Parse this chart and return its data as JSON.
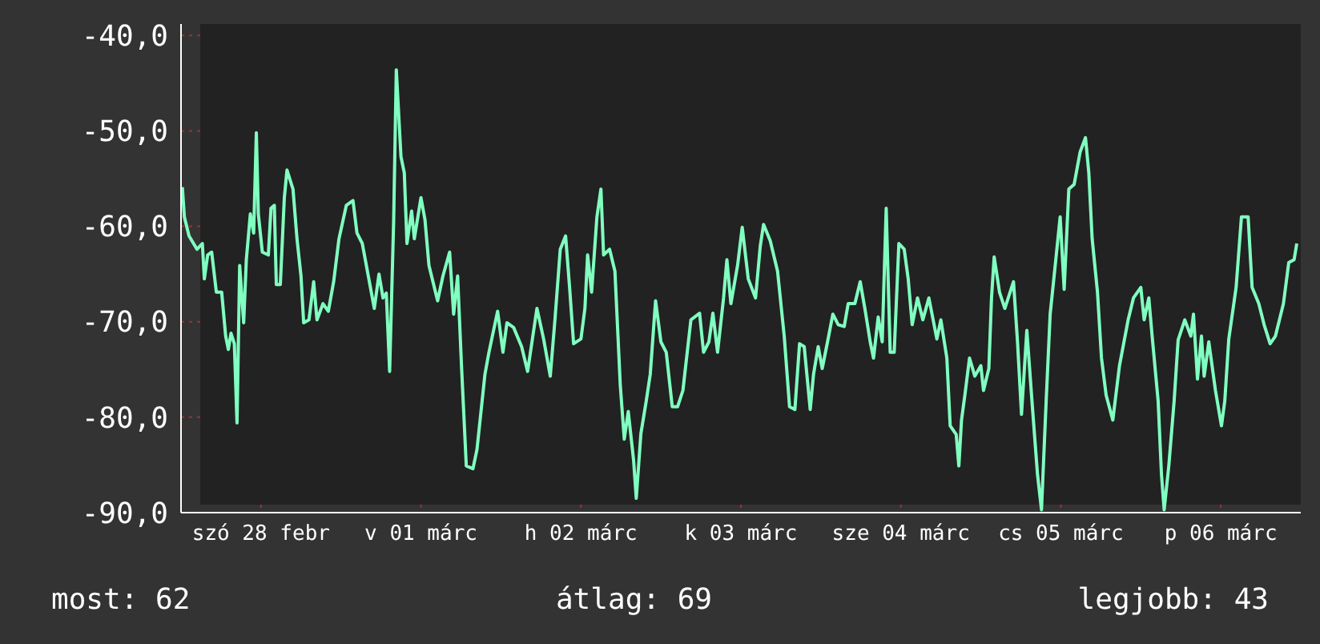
{
  "chart_data": {
    "type": "line",
    "x": [
      "--02-27T12:12",
      "--02-27T12:30",
      "--02-27T13:12",
      "--02-27T14:24",
      "--02-27T15:12",
      "--02-27T15:30",
      "--02-27T16:00",
      "--02-27T16:36",
      "--02-27T17:18",
      "--02-27T18:06",
      "--02-27T18:42",
      "--02-27T19:06",
      "--02-27T19:30",
      "--02-27T20:00",
      "--02-27T20:24",
      "--02-27T20:48",
      "--02-27T21:24",
      "--02-27T21:48",
      "--02-27T22:24",
      "--02-27T22:54",
      "--02-27T23:18",
      "--02-27T23:36",
      "--02-28T00:12",
      "--02-28T01:06",
      "--02-28T01:30",
      "--02-28T02:00",
      "--02-28T02:18",
      "--02-28T02:54",
      "--02-28T03:30",
      "--02-28T03:54",
      "--02-28T04:48",
      "--02-28T05:24",
      "--02-28T06:00",
      "--02-28T06:24",
      "--02-28T07:12",
      "--02-28T07:54",
      "--02-28T08:24",
      "--02-28T09:18",
      "--02-28T10:06",
      "--02-28T10:54",
      "--02-28T11:42",
      "--02-28T12:48",
      "--02-28T13:48",
      "--02-28T14:24",
      "--02-28T15:12",
      "--02-28T16:06",
      "--02-28T17:00",
      "--02-28T17:42",
      "--02-28T18:18",
      "--02-28T18:48",
      "--02-28T19:18",
      "--02-28T19:54",
      "--02-28T20:18",
      "--02-28T21:00",
      "--02-28T21:30",
      "--02-28T21:54",
      "--02-28T22:36",
      "--02-28T23:00",
      "--03-01T00:00",
      "--03-01T00:36",
      "--03-01T01:12",
      "--03-01T02:30",
      "--03-01T03:18",
      "--03-01T04:18",
      "--03-01T04:54",
      "--03-01T05:30",
      "--03-01T06:06",
      "--03-01T06:48",
      "--03-01T07:48",
      "--03-01T08:24",
      "--03-01T09:36",
      "--03-01T10:12",
      "--03-01T11:30",
      "--03-01T12:18",
      "--03-01T12:54",
      "--03-01T13:54",
      "--03-01T15:06",
      "--03-01T16:00",
      "--03-01T17:24",
      "--03-01T18:24",
      "--03-01T19:24",
      "--03-01T20:06",
      "--03-01T20:54",
      "--03-01T21:42",
      "--03-01T22:18",
      "--03-01T22:54",
      "--03-02T00:00",
      "--03-02T00:36",
      "--03-02T01:00",
      "--03-02T01:36",
      "--03-02T02:24",
      "--03-02T03:00",
      "--03-02T03:24",
      "--03-02T04:18",
      "--03-02T05:06",
      "--03-02T05:54",
      "--03-02T06:30",
      "--03-02T07:06",
      "--03-02T07:54",
      "--03-02T08:18",
      "--03-02T09:00",
      "--03-02T09:48",
      "--03-02T10:24",
      "--03-02T11:12",
      "--03-02T12:00",
      "--03-02T12:48",
      "--03-02T13:42",
      "--03-02T14:30",
      "--03-02T15:18",
      "--03-02T16:30",
      "--03-02T17:48",
      "--03-02T18:24",
      "--03-02T19:12",
      "--03-02T19:48",
      "--03-02T20:30",
      "--03-02T21:24",
      "--03-02T21:54",
      "--03-02T22:30",
      "--03-02T23:30",
      "--03-03T00:12",
      "--03-03T01:06",
      "--03-03T02:12",
      "--03-03T02:54",
      "--03-03T03:24",
      "--03-03T04:24",
      "--03-03T05:30",
      "--03-03T06:30",
      "--03-03T07:18",
      "--03-03T08:06",
      "--03-03T08:48",
      "--03-03T09:30",
      "--03-03T10:24",
      "--03-03T10:54",
      "--03-03T11:36",
      "--03-03T12:12",
      "--03-03T13:00",
      "--03-03T13:48",
      "--03-03T14:36",
      "--03-03T15:30",
      "--03-03T16:06",
      "--03-03T17:06",
      "--03-03T17:54",
      "--03-03T18:36",
      "--03-03T19:24",
      "--03-03T19:54",
      "--03-03T20:36",
      "--03-03T21:12",
      "--03-03T21:48",
      "--03-03T22:24",
      "--03-03T23:00",
      "--03-03T23:42",
      "--03-04T00:30",
      "--03-04T01:06",
      "--03-04T01:42",
      "--03-04T02:30",
      "--03-04T03:18",
      "--03-04T04:12",
      "--03-04T05:24",
      "--03-04T06:00",
      "--03-04T06:54",
      "--03-04T07:24",
      "--03-04T08:18",
      "--03-04T08:42",
      "--03-04T09:06",
      "--03-04T09:36",
      "--03-04T10:18",
      "--03-04T11:06",
      "--03-04T12:00",
      "--03-04T12:24",
      "--03-04T13:12",
      "--03-04T13:36",
      "--03-04T14:00",
      "--03-04T14:48",
      "--03-04T15:36",
      "--03-04T16:54",
      "--03-04T17:30",
      "--03-04T18:06",
      "--03-04T18:54",
      "--03-04T19:42",
      "--03-04T20:30",
      "--03-04T21:06",
      "--03-04T21:48",
      "--03-04T22:24",
      "--03-04T23:12",
      "--03-04T23:54",
      "--03-05T00:30",
      "--03-05T01:12",
      "--03-05T02:00",
      "--03-05T02:54",
      "--03-05T03:42",
      "--03-05T04:12",
      "--03-05T04:42",
      "--03-05T05:30",
      "--03-05T06:06",
      "--03-05T06:48",
      "--03-05T07:48",
      "--03-05T08:48",
      "--03-05T10:06",
      "--03-05T10:54",
      "--03-05T12:00",
      "--03-05T12:30",
      "--03-05T13:12",
      "--03-05T13:42",
      "--03-05T14:36",
      "--03-05T15:06",
      "--03-05T15:30",
      "--03-05T16:12",
      "--03-05T17:00",
      "--03-05T17:36",
      "--03-05T18:36",
      "--03-05T19:30",
      "--03-05T19:54",
      "--03-05T20:30",
      "--03-05T21:06",
      "--03-05T21:30",
      "--03-05T22:12",
      "--03-05T23:12",
      "--03-06T00:06",
      "--03-06T00:36",
      "--03-06T01:12",
      "--03-06T02:18",
      "--03-06T03:06",
      "--03-06T04:06",
      "--03-06T04:42",
      "--03-06T05:42",
      "--03-06T06:30",
      "--03-06T07:24",
      "--03-06T08:12",
      "--03-06T09:24",
      "--03-06T10:12",
      "--03-06T11:00",
      "--03-06T11:24"
    ],
    "series": [
      {
        "color": "#80ffc0",
        "values": [
          -55.9,
          -59.0,
          -61.0,
          -62.4,
          -61.8,
          -65.5,
          -63.0,
          -62.7,
          -66.9,
          -66.9,
          -71.5,
          -72.9,
          -71.2,
          -72.3,
          -80.6,
          -64.1,
          -70.1,
          -63.5,
          -58.7,
          -60.7,
          -50.2,
          -58.7,
          -62.7,
          -63.0,
          -58.1,
          -57.8,
          -66.1,
          -66.1,
          -57.0,
          -54.1,
          -56.1,
          -61.3,
          -65.2,
          -70.1,
          -69.8,
          -65.8,
          -69.8,
          -68.1,
          -68.9,
          -65.8,
          -61.3,
          -57.8,
          -57.3,
          -60.7,
          -61.8,
          -65.2,
          -68.6,
          -65.0,
          -67.5,
          -67.0,
          -75.2,
          -59.5,
          -43.6,
          -52.7,
          -54.4,
          -61.8,
          -58.4,
          -61.3,
          -57.0,
          -59.3,
          -64.1,
          -67.8,
          -65.2,
          -62.7,
          -69.2,
          -65.2,
          -74.9,
          -85.1,
          -85.4,
          -83.4,
          -75.5,
          -73.2,
          -68.9,
          -73.2,
          -70.1,
          -70.6,
          -72.6,
          -75.2,
          -68.6,
          -71.8,
          -75.7,
          -69.8,
          -62.4,
          -61.0,
          -66.4,
          -72.3,
          -71.8,
          -68.6,
          -63.0,
          -66.9,
          -59.0,
          -56.1,
          -63.0,
          -62.4,
          -64.7,
          -76.6,
          -82.3,
          -79.4,
          -84.5,
          -88.5,
          -81.7,
          -78.3,
          -75.5,
          -67.8,
          -72.1,
          -73.2,
          -78.9,
          -78.9,
          -77.2,
          -69.8,
          -69.1,
          -73.2,
          -72.1,
          -69.1,
          -73.2,
          -67.5,
          -63.5,
          -68.1,
          -64.1,
          -60.1,
          -65.5,
          -67.5,
          -62.1,
          -59.8,
          -61.5,
          -64.7,
          -71.5,
          -78.9,
          -79.2,
          -72.3,
          -72.6,
          -79.2,
          -75.5,
          -72.6,
          -74.9,
          -72.1,
          -69.2,
          -70.3,
          -70.5,
          -68.1,
          -68.1,
          -65.8,
          -68.6,
          -72.1,
          -73.8,
          -69.5,
          -72.1,
          -58.1,
          -73.2,
          -73.2,
          -61.8,
          -62.4,
          -65.5,
          -70.3,
          -67.5,
          -69.8,
          -67.5,
          -71.8,
          -69.8,
          -73.8,
          -80.9,
          -81.8,
          -85.1,
          -80.3,
          -77.7,
          -73.8,
          -75.7,
          -74.6,
          -77.2,
          -74.9,
          -67.5,
          -63.2,
          -66.9,
          -68.6,
          -65.8,
          -72.1,
          -79.7,
          -70.9,
          -78.6,
          -86.0,
          -89.7,
          -78.3,
          -69.2,
          -63.8,
          -59.0,
          -66.6,
          -56.1,
          -55.6,
          -52.2,
          -50.7,
          -54.4,
          -61.3,
          -66.9,
          -73.8,
          -77.7,
          -80.3,
          -74.6,
          -69.8,
          -67.5,
          -66.4,
          -69.8,
          -67.5,
          -71.5,
          -78.3,
          -86.0,
          -89.7,
          -85.1,
          -78.3,
          -71.9,
          -69.8,
          -71.5,
          -69.2,
          -76.0,
          -71.5,
          -75.7,
          -72.1,
          -77.2,
          -80.9,
          -78.3,
          -71.8,
          -66.4,
          -59.0,
          -59.0,
          -66.4,
          -68.1,
          -70.3,
          -72.3,
          -71.5,
          -68.1,
          -63.8,
          -63.5,
          -61.8
        ]
      }
    ],
    "xlim": [
      "--02-27T12:00",
      "--03-06T12:00"
    ],
    "xticks": [
      {
        "value": "--02-28",
        "label": "szó 28 febr"
      },
      {
        "value": "--03-01",
        "label": "v 01 márc"
      },
      {
        "value": "--03-02",
        "label": "h 02 márc"
      },
      {
        "value": "--03-03",
        "label": "k 03 márc"
      },
      {
        "value": "--03-04",
        "label": "sze 04 márc"
      },
      {
        "value": "--03-05",
        "label": "cs 05 márc"
      },
      {
        "value": "--03-06",
        "label": "p 06 márc"
      }
    ],
    "ylim": [
      -90,
      -38.8
    ],
    "yticks": [
      {
        "value": -90,
        "label": "-90,0"
      },
      {
        "value": -80,
        "label": "-80,0"
      },
      {
        "value": -70,
        "label": "-70,0"
      },
      {
        "value": -60,
        "label": "-60,0"
      },
      {
        "value": -50,
        "label": "-50,0"
      },
      {
        "value": -40,
        "label": "-40,0"
      }
    ],
    "grid": true,
    "legend": false,
    "marker": "none",
    "line_style": "solid",
    "annotations": [
      "most: 62",
      "átlag: 69",
      "legjobb: 43"
    ]
  }
}
